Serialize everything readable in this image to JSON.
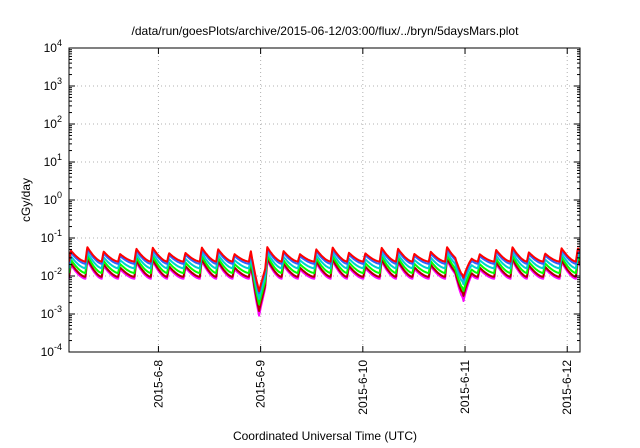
{
  "chart_data": {
    "type": "line",
    "title": "/data/run/goesPlots/archive/2015-06-12/03:00/flux/../bryn/5daysMars.plot",
    "xlabel": "Coordinated Universal Time (UTC)",
    "ylabel": "cGy/day",
    "yscale": "log",
    "ylim": [
      0.0001,
      10000
    ],
    "xlim": [
      "2015-06-07T03:00",
      "2015-06-12T03:00"
    ],
    "grid": true,
    "y_ticks": [
      {
        "base": "10",
        "exp": "-4",
        "value": 0.0001
      },
      {
        "base": "10",
        "exp": "-3",
        "value": 0.001
      },
      {
        "base": "10",
        "exp": "-2",
        "value": 0.01
      },
      {
        "base": "10",
        "exp": "-1",
        "value": 0.1
      },
      {
        "base": "10",
        "exp": "0",
        "value": 1
      },
      {
        "base": "10",
        "exp": "1",
        "value": 10
      },
      {
        "base": "10",
        "exp": "2",
        "value": 100
      },
      {
        "base": "10",
        "exp": "3",
        "value": 1000
      },
      {
        "base": "10",
        "exp": "4",
        "value": 10000
      }
    ],
    "x_ticks": [
      {
        "label": "2015-6-8",
        "value": "2015-06-08T00:00"
      },
      {
        "label": "2015-6-9",
        "value": "2015-06-09T00:00"
      },
      {
        "label": "2015-6-10",
        "value": "2015-06-10T00:00"
      },
      {
        "label": "2015-6-11",
        "value": "2015-06-11T00:00"
      },
      {
        "label": "2015-6-12",
        "value": "2015-06-12T00:00"
      }
    ],
    "series_colors": [
      "#ff00ff",
      "#b00000",
      "#00ff00",
      "#00d0d0",
      "#3060ff",
      "#ff0000"
    ],
    "series": [
      {
        "color": "#ff00ff",
        "base": 0.0085,
        "peak": 0.026,
        "dips": [
          {
            "day": 1.86,
            "min": 0.0009
          },
          {
            "day": 3.86,
            "min": 0.0022
          }
        ]
      },
      {
        "color": "#b00000",
        "base": 0.0095,
        "peak": 0.029,
        "dips": [
          {
            "day": 1.86,
            "min": 0.0012
          },
          {
            "day": 3.86,
            "min": 0.003
          }
        ]
      },
      {
        "color": "#00ff00",
        "base": 0.012,
        "peak": 0.035,
        "dips": [
          {
            "day": 1.86,
            "min": 0.0018
          },
          {
            "day": 3.86,
            "min": 0.004
          }
        ]
      },
      {
        "color": "#00d0d0",
        "base": 0.016,
        "peak": 0.042,
        "dips": [
          {
            "day": 1.86,
            "min": 0.0025
          },
          {
            "day": 3.86,
            "min": 0.006
          }
        ]
      },
      {
        "color": "#3060ff",
        "base": 0.021,
        "peak": 0.052,
        "dips": [
          {
            "day": 1.86,
            "min": 0.0035
          },
          {
            "day": 3.86,
            "min": 0.008
          }
        ]
      },
      {
        "color": "#ff0000",
        "base": 0.024,
        "peak": 0.058,
        "dips": [
          {
            "day": 1.86,
            "min": 0.004
          },
          {
            "day": 3.86,
            "min": 0.009
          }
        ]
      }
    ]
  }
}
